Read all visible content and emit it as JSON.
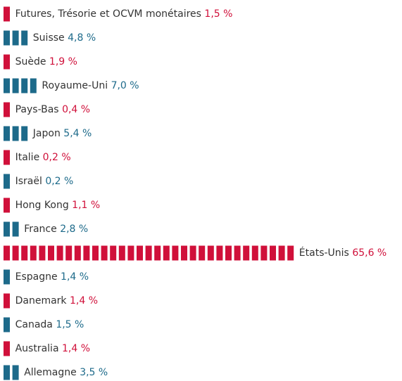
{
  "chart_data": {
    "type": "pictogram-bar",
    "categories": [
      "Futures, Trésorie et OCVM monétaires",
      "Suisse",
      "Suède",
      "Royaume-Uni",
      "Pays-Bas",
      "Japon",
      "Italie",
      "Israël",
      "Hong Kong",
      "France",
      "États-Unis",
      "Espagne",
      "Danemark",
      "Canada",
      "Australia",
      "Allemagne"
    ],
    "values": [
      1.5,
      4.8,
      1.9,
      7.0,
      0.4,
      5.4,
      0.2,
      0.2,
      1.1,
      2.8,
      65.6,
      1.4,
      1.4,
      1.5,
      1.4,
      3.5
    ],
    "value_labels": [
      "1,5 %",
      "4,8 %",
      "1,9 %",
      "7,0 %",
      "0,4 %",
      "5,4 %",
      "0,2 %",
      "0,2 %",
      "1,1 %",
      "2,8 %",
      "65,6 %",
      "1,4 %",
      "1,4 %",
      "1,5 %",
      "1,4 %",
      "3,5 %"
    ],
    "colors": [
      "#d0103a",
      "#1d6a8a",
      "#d0103a",
      "#1d6a8a",
      "#d0103a",
      "#1d6a8a",
      "#d0103a",
      "#1d6a8a",
      "#d0103a",
      "#1d6a8a",
      "#d0103a",
      "#1d6a8a",
      "#d0103a",
      "#1d6a8a",
      "#d0103a",
      "#1d6a8a"
    ]
  }
}
